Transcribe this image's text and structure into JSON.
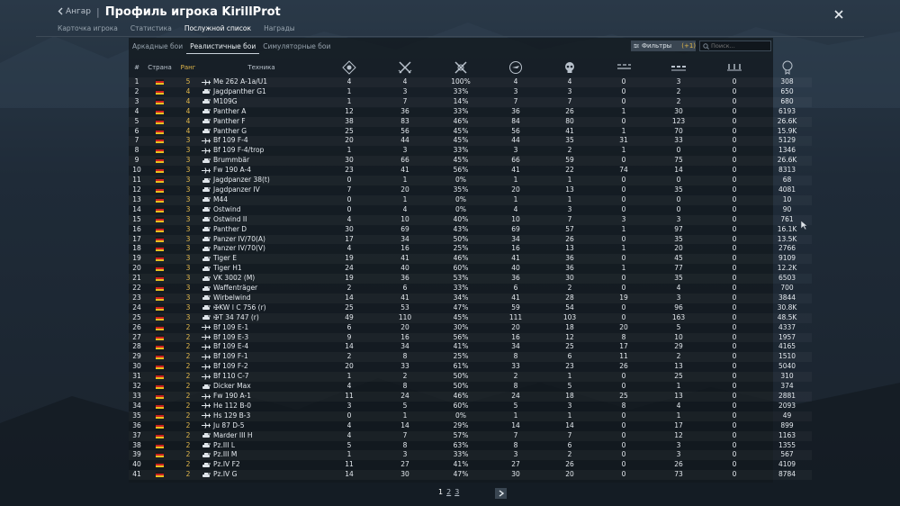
{
  "header": {
    "back_label": "Ангар",
    "separator": "|",
    "title": "Профиль игрока KirillProt",
    "tabs": [
      {
        "label": "Карточка игрока",
        "active": false
      },
      {
        "label": "Статистика",
        "active": false
      },
      {
        "label": "Послужной список",
        "active": true
      },
      {
        "label": "Награды",
        "active": false
      }
    ]
  },
  "subtabs": [
    {
      "label": "Аркадные бои",
      "active": false
    },
    {
      "label": "Реалистичные бои",
      "active": true
    },
    {
      "label": "Симуляторные бои",
      "active": false
    }
  ],
  "filters": {
    "label": "Фильтры",
    "count": "(+1)"
  },
  "search": {
    "placeholder": "Поиск..."
  },
  "columns": {
    "num": "#",
    "country": "Страна",
    "rank": "Ранг",
    "vehicle": "Техника"
  },
  "stat_columns_icons": [
    "respawns-icon",
    "battles-icon",
    "victories-icon",
    "air-kills-icon",
    "ground-kills-icon",
    "deaths-icon",
    "naval-kills-icon",
    "assists-icon",
    "score-icon"
  ],
  "colors": {
    "accent": "#e0b64a",
    "panel": "#12181e"
  },
  "rows": [
    {
      "n": "1",
      "rank": "5",
      "type": "plane",
      "name": "Me 262 A-1a/U1",
      "c1": "4",
      "c2": "4",
      "c3": "100%",
      "c4": "4",
      "c5": "4",
      "c6": "0",
      "c7": "3",
      "c8": "0",
      "c9": "308"
    },
    {
      "n": "2",
      "rank": "4",
      "type": "tank",
      "name": "Jagdpanther G1",
      "c1": "1",
      "c2": "3",
      "c3": "33%",
      "c4": "3",
      "c5": "3",
      "c6": "0",
      "c7": "2",
      "c8": "0",
      "c9": "650"
    },
    {
      "n": "3",
      "rank": "4",
      "type": "tank",
      "name": "M109G",
      "c1": "1",
      "c2": "7",
      "c3": "14%",
      "c4": "7",
      "c5": "7",
      "c6": "0",
      "c7": "2",
      "c8": "0",
      "c9": "680"
    },
    {
      "n": "4",
      "rank": "4",
      "type": "tank",
      "name": "Panther A",
      "c1": "12",
      "c2": "36",
      "c3": "33%",
      "c4": "36",
      "c5": "26",
      "c6": "1",
      "c7": "30",
      "c8": "0",
      "c9": "6193"
    },
    {
      "n": "5",
      "rank": "4",
      "type": "tank",
      "name": "Panther F",
      "c1": "38",
      "c2": "83",
      "c3": "46%",
      "c4": "84",
      "c5": "80",
      "c6": "0",
      "c7": "123",
      "c8": "0",
      "c9": "26.6K"
    },
    {
      "n": "6",
      "rank": "4",
      "type": "tank",
      "name": "Panther G",
      "c1": "25",
      "c2": "56",
      "c3": "45%",
      "c4": "56",
      "c5": "41",
      "c6": "1",
      "c7": "70",
      "c8": "0",
      "c9": "15.9K"
    },
    {
      "n": "7",
      "rank": "3",
      "type": "plane",
      "name": "Bf 109 F-4",
      "c1": "20",
      "c2": "44",
      "c3": "45%",
      "c4": "44",
      "c5": "35",
      "c6": "31",
      "c7": "33",
      "c8": "0",
      "c9": "5129"
    },
    {
      "n": "8",
      "rank": "3",
      "type": "plane",
      "name": "Bf 109 F-4/trop",
      "c1": "1",
      "c2": "3",
      "c3": "33%",
      "c4": "3",
      "c5": "2",
      "c6": "1",
      "c7": "0",
      "c8": "0",
      "c9": "1346"
    },
    {
      "n": "9",
      "rank": "3",
      "type": "tank",
      "name": "Brummbär",
      "c1": "30",
      "c2": "66",
      "c3": "45%",
      "c4": "66",
      "c5": "59",
      "c6": "0",
      "c7": "75",
      "c8": "0",
      "c9": "26.6K"
    },
    {
      "n": "10",
      "rank": "3",
      "type": "plane",
      "name": "Fw 190 A-4",
      "c1": "23",
      "c2": "41",
      "c3": "56%",
      "c4": "41",
      "c5": "22",
      "c6": "74",
      "c7": "14",
      "c8": "0",
      "c9": "8313"
    },
    {
      "n": "11",
      "rank": "3",
      "type": "tank",
      "name": "Jagdpanzer 38(t)",
      "c1": "0",
      "c2": "1",
      "c3": "0%",
      "c4": "1",
      "c5": "1",
      "c6": "0",
      "c7": "0",
      "c8": "0",
      "c9": "68"
    },
    {
      "n": "12",
      "rank": "3",
      "type": "tank",
      "name": "Jagdpanzer IV",
      "c1": "7",
      "c2": "20",
      "c3": "35%",
      "c4": "20",
      "c5": "13",
      "c6": "0",
      "c7": "35",
      "c8": "0",
      "c9": "4081"
    },
    {
      "n": "13",
      "rank": "3",
      "type": "tank",
      "name": "M44",
      "c1": "0",
      "c2": "1",
      "c3": "0%",
      "c4": "1",
      "c5": "1",
      "c6": "0",
      "c7": "0",
      "c8": "0",
      "c9": "10"
    },
    {
      "n": "14",
      "rank": "3",
      "type": "tank",
      "name": "Ostwind",
      "c1": "0",
      "c2": "4",
      "c3": "0%",
      "c4": "4",
      "c5": "3",
      "c6": "0",
      "c7": "0",
      "c8": "0",
      "c9": "90"
    },
    {
      "n": "15",
      "rank": "3",
      "type": "tank",
      "name": "Ostwind II",
      "c1": "4",
      "c2": "10",
      "c3": "40%",
      "c4": "10",
      "c5": "7",
      "c6": "3",
      "c7": "3",
      "c8": "0",
      "c9": "761"
    },
    {
      "n": "16",
      "rank": "3",
      "type": "tank",
      "name": "Panther D",
      "c1": "30",
      "c2": "69",
      "c3": "43%",
      "c4": "69",
      "c5": "57",
      "c6": "1",
      "c7": "97",
      "c8": "0",
      "c9": "16.1K"
    },
    {
      "n": "17",
      "rank": "3",
      "type": "tank",
      "name": "Panzer IV/70(A)",
      "c1": "17",
      "c2": "34",
      "c3": "50%",
      "c4": "34",
      "c5": "26",
      "c6": "0",
      "c7": "35",
      "c8": "0",
      "c9": "13.5K"
    },
    {
      "n": "18",
      "rank": "3",
      "type": "tank",
      "name": "Panzer IV/70(V)",
      "c1": "4",
      "c2": "16",
      "c3": "25%",
      "c4": "16",
      "c5": "13",
      "c6": "1",
      "c7": "20",
      "c8": "0",
      "c9": "2766"
    },
    {
      "n": "19",
      "rank": "3",
      "type": "tank",
      "name": "Tiger E",
      "c1": "19",
      "c2": "41",
      "c3": "46%",
      "c4": "41",
      "c5": "36",
      "c6": "0",
      "c7": "45",
      "c8": "0",
      "c9": "9109"
    },
    {
      "n": "20",
      "rank": "3",
      "type": "tank",
      "name": "Tiger H1",
      "c1": "24",
      "c2": "40",
      "c3": "60%",
      "c4": "40",
      "c5": "36",
      "c6": "1",
      "c7": "77",
      "c8": "0",
      "c9": "12.2K"
    },
    {
      "n": "21",
      "rank": "3",
      "type": "tank",
      "name": "VK 3002 (M)",
      "c1": "19",
      "c2": "36",
      "c3": "53%",
      "c4": "36",
      "c5": "30",
      "c6": "0",
      "c7": "35",
      "c8": "0",
      "c9": "6503"
    },
    {
      "n": "22",
      "rank": "3",
      "type": "tank",
      "name": "Waffenträger",
      "c1": "2",
      "c2": "6",
      "c3": "33%",
      "c4": "6",
      "c5": "2",
      "c6": "0",
      "c7": "4",
      "c8": "0",
      "c9": "700"
    },
    {
      "n": "23",
      "rank": "3",
      "type": "tank",
      "name": "Wirbelwind",
      "c1": "14",
      "c2": "41",
      "c3": "34%",
      "c4": "41",
      "c5": "28",
      "c6": "19",
      "c7": "3",
      "c8": "0",
      "c9": "3844"
    },
    {
      "n": "24",
      "rank": "3",
      "type": "tank",
      "name": "✠KW I C 756 (r)",
      "c1": "25",
      "c2": "53",
      "c3": "47%",
      "c4": "59",
      "c5": "54",
      "c6": "0",
      "c7": "96",
      "c8": "0",
      "c9": "30.8K"
    },
    {
      "n": "25",
      "rank": "3",
      "type": "tank",
      "name": "✠T 34 747 (r)",
      "c1": "49",
      "c2": "110",
      "c3": "45%",
      "c4": "111",
      "c5": "103",
      "c6": "0",
      "c7": "163",
      "c8": "0",
      "c9": "48.5K"
    },
    {
      "n": "26",
      "rank": "2",
      "type": "plane",
      "name": "Bf 109 E-1",
      "c1": "6",
      "c2": "20",
      "c3": "30%",
      "c4": "20",
      "c5": "18",
      "c6": "20",
      "c7": "5",
      "c8": "0",
      "c9": "4337"
    },
    {
      "n": "27",
      "rank": "2",
      "type": "plane",
      "name": "Bf 109 E-3",
      "c1": "9",
      "c2": "16",
      "c3": "56%",
      "c4": "16",
      "c5": "12",
      "c6": "8",
      "c7": "10",
      "c8": "0",
      "c9": "1957"
    },
    {
      "n": "28",
      "rank": "2",
      "type": "plane",
      "name": "Bf 109 E-4",
      "c1": "14",
      "c2": "34",
      "c3": "41%",
      "c4": "34",
      "c5": "25",
      "c6": "17",
      "c7": "29",
      "c8": "0",
      "c9": "4165"
    },
    {
      "n": "29",
      "rank": "2",
      "type": "plane",
      "name": "Bf 109 F-1",
      "c1": "2",
      "c2": "8",
      "c3": "25%",
      "c4": "8",
      "c5": "6",
      "c6": "11",
      "c7": "2",
      "c8": "0",
      "c9": "1510"
    },
    {
      "n": "30",
      "rank": "2",
      "type": "plane",
      "name": "Bf 109 F-2",
      "c1": "20",
      "c2": "33",
      "c3": "61%",
      "c4": "33",
      "c5": "23",
      "c6": "26",
      "c7": "13",
      "c8": "0",
      "c9": "5040"
    },
    {
      "n": "31",
      "rank": "2",
      "type": "plane",
      "name": "Bf 110 C-7",
      "c1": "1",
      "c2": "2",
      "c3": "50%",
      "c4": "2",
      "c5": "1",
      "c6": "0",
      "c7": "25",
      "c8": "0",
      "c9": "310"
    },
    {
      "n": "32",
      "rank": "2",
      "type": "tank",
      "name": "Dicker Max",
      "c1": "4",
      "c2": "8",
      "c3": "50%",
      "c4": "8",
      "c5": "5",
      "c6": "0",
      "c7": "1",
      "c8": "0",
      "c9": "374"
    },
    {
      "n": "33",
      "rank": "2",
      "type": "plane",
      "name": "Fw 190 A-1",
      "c1": "11",
      "c2": "24",
      "c3": "46%",
      "c4": "24",
      "c5": "18",
      "c6": "25",
      "c7": "13",
      "c8": "0",
      "c9": "2881"
    },
    {
      "n": "34",
      "rank": "2",
      "type": "plane",
      "name": "He 112 B-0",
      "c1": "3",
      "c2": "5",
      "c3": "60%",
      "c4": "5",
      "c5": "3",
      "c6": "8",
      "c7": "4",
      "c8": "0",
      "c9": "2093"
    },
    {
      "n": "35",
      "rank": "2",
      "type": "plane",
      "name": "Hs 129 B-3",
      "c1": "0",
      "c2": "1",
      "c3": "0%",
      "c4": "1",
      "c5": "1",
      "c6": "0",
      "c7": "1",
      "c8": "0",
      "c9": "49"
    },
    {
      "n": "36",
      "rank": "2",
      "type": "plane",
      "name": "Ju 87 D-5",
      "c1": "4",
      "c2": "14",
      "c3": "29%",
      "c4": "14",
      "c5": "14",
      "c6": "0",
      "c7": "17",
      "c8": "0",
      "c9": "899"
    },
    {
      "n": "37",
      "rank": "2",
      "type": "tank",
      "name": "Marder III H",
      "c1": "4",
      "c2": "7",
      "c3": "57%",
      "c4": "7",
      "c5": "7",
      "c6": "0",
      "c7": "12",
      "c8": "0",
      "c9": "1163"
    },
    {
      "n": "38",
      "rank": "2",
      "type": "tank",
      "name": "Pz.III L",
      "c1": "5",
      "c2": "8",
      "c3": "63%",
      "c4": "8",
      "c5": "6",
      "c6": "0",
      "c7": "3",
      "c8": "0",
      "c9": "1355"
    },
    {
      "n": "39",
      "rank": "2",
      "type": "tank",
      "name": "Pz.III M",
      "c1": "1",
      "c2": "3",
      "c3": "33%",
      "c4": "3",
      "c5": "2",
      "c6": "0",
      "c7": "3",
      "c8": "0",
      "c9": "567"
    },
    {
      "n": "40",
      "rank": "2",
      "type": "tank",
      "name": "Pz.IV F2",
      "c1": "11",
      "c2": "27",
      "c3": "41%",
      "c4": "27",
      "c5": "26",
      "c6": "0",
      "c7": "26",
      "c8": "0",
      "c9": "4109"
    },
    {
      "n": "41",
      "rank": "2",
      "type": "tank",
      "name": "Pz.IV G",
      "c1": "14",
      "c2": "30",
      "c3": "47%",
      "c4": "30",
      "c5": "20",
      "c6": "0",
      "c7": "73",
      "c8": "0",
      "c9": "8784"
    }
  ],
  "pagination": {
    "pages": [
      "1",
      "2",
      "3"
    ],
    "current": "1"
  }
}
